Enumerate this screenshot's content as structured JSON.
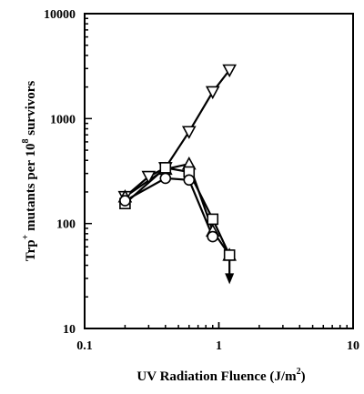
{
  "chart_data": {
    "type": "line",
    "xscale": "log",
    "yscale": "log",
    "xlim": [
      0.1,
      10
    ],
    "ylim": [
      10,
      10000
    ],
    "xticks": [
      0.1,
      1,
      10
    ],
    "xtick_labels": [
      "0.1",
      "1",
      "10"
    ],
    "yticks": [
      10,
      100,
      1000,
      10000
    ],
    "ytick_labels": [
      "10",
      "100",
      "1000",
      "10000"
    ],
    "xlabel": {
      "main": "UV Radiation Fluence  (J/m",
      "sup": "2",
      "end": ")"
    },
    "ylabel": {
      "pre": "Trp",
      "sup1": "+",
      "mid": " mutants per 10",
      "sup2": "8",
      "post": " survivors"
    },
    "grid": false,
    "series": [
      {
        "marker": "triangle-down",
        "x": [
          0.2,
          0.3,
          0.4,
          0.6,
          0.9,
          1.2
        ],
        "y": [
          180,
          280,
          340,
          750,
          1800,
          2900
        ]
      },
      {
        "marker": "triangle-up",
        "x": [
          0.2,
          0.4,
          0.6,
          0.9,
          1.2
        ],
        "y": [
          180,
          330,
          370,
          85,
          50
        ]
      },
      {
        "marker": "square",
        "x": [
          0.2,
          0.4,
          0.6,
          0.9,
          1.2
        ],
        "y": [
          155,
          340,
          310,
          110,
          50
        ]
      },
      {
        "marker": "circle",
        "x": [
          0.2,
          0.4,
          0.6,
          0.9
        ],
        "y": [
          165,
          270,
          260,
          75
        ]
      }
    ],
    "annotations": [
      {
        "type": "arrow-down",
        "x": 1.2,
        "y": 50
      }
    ]
  }
}
